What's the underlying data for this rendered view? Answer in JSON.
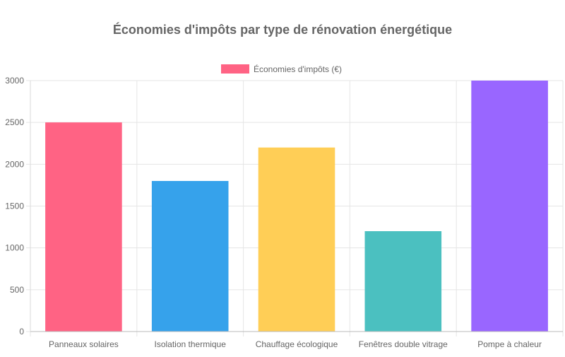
{
  "chart_data": {
    "type": "bar",
    "title": "Économies d'impôts par type de rénovation énergétique",
    "legend": {
      "position": "top",
      "entries": [
        {
          "label": "Économies d'impôts (€)",
          "color": "#ff6384"
        }
      ]
    },
    "categories": [
      "Panneaux solaires",
      "Isolation thermique",
      "Chauffage écologique",
      "Fenêtres double vitrage",
      "Pompe à chaleur"
    ],
    "series": [
      {
        "name": "Économies d'impôts (€)",
        "values": [
          2500,
          1800,
          2200,
          1200,
          3000
        ],
        "colors": [
          "#ff6384",
          "#36a2eb",
          "#ffce56",
          "#4bc0c0",
          "#9966ff"
        ]
      }
    ],
    "ylim": [
      0,
      3000
    ],
    "yticks": [
      0,
      500,
      1000,
      1500,
      2000,
      2500,
      3000
    ],
    "grid": true
  }
}
